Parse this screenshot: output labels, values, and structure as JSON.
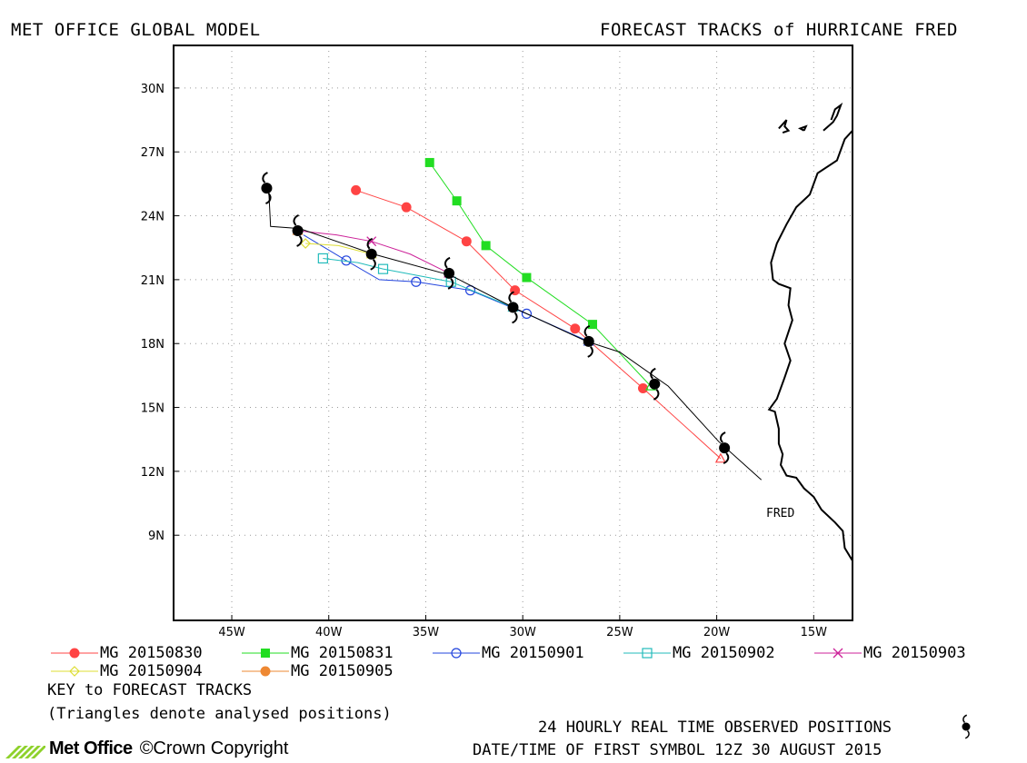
{
  "header": {
    "left_title": "MET OFFICE GLOBAL MODEL",
    "right_title": "FORECAST TRACKS of HURRICANE FRED"
  },
  "legend": {
    "entries": [
      {
        "label": "MG 20150830",
        "color": "#ff4444",
        "marker": "filled-circle"
      },
      {
        "label": "MG 20150831",
        "color": "#22dd22",
        "marker": "filled-square"
      },
      {
        "label": "MG 20150901",
        "color": "#2244dd",
        "marker": "open-circle"
      },
      {
        "label": "MG 20150902",
        "color": "#22bbbb",
        "marker": "open-square"
      },
      {
        "label": "MG 20150903",
        "color": "#cc2299",
        "marker": "cross"
      },
      {
        "label": "MG 20150904",
        "color": "#dddd33",
        "marker": "open-diamond"
      },
      {
        "label": "MG 20150905",
        "color": "#ee8833",
        "marker": "filled-circle"
      }
    ],
    "key_title": "KEY to FORECAST TRACKS",
    "key_note": "(Triangles denote analysed positions)"
  },
  "footer": {
    "observed_label": "24 HOURLY REAL TIME OBSERVED POSITIONS",
    "datetime_label": "DATE/TIME OF FIRST SYMBOL 12Z 30 AUGUST 2015",
    "logo_text": "Met Office",
    "copyright": "©Crown Copyright"
  },
  "chart_data": {
    "type": "line",
    "title": "FORECAST TRACKS of HURRICANE FRED",
    "storm_label": "FRED",
    "xlim": [
      -48,
      -13
    ],
    "ylim": [
      5,
      32
    ],
    "x_ticks": [
      {
        "value": -45,
        "label": "45W"
      },
      {
        "value": -40,
        "label": "40W"
      },
      {
        "value": -35,
        "label": "35W"
      },
      {
        "value": -30,
        "label": "30W"
      },
      {
        "value": -25,
        "label": "25W"
      },
      {
        "value": -20,
        "label": "20W"
      },
      {
        "value": -15,
        "label": "15W"
      }
    ],
    "y_ticks": [
      {
        "value": 9,
        "label": "9N"
      },
      {
        "value": 12,
        "label": "12N"
      },
      {
        "value": 15,
        "label": "15N"
      },
      {
        "value": 18,
        "label": "18N"
      },
      {
        "value": 21,
        "label": "21N"
      },
      {
        "value": 24,
        "label": "24N"
      },
      {
        "value": 27,
        "label": "27N"
      },
      {
        "value": 30,
        "label": "30N"
      }
    ],
    "grid": true,
    "observed_track": {
      "line": [
        [
          -17.7,
          11.6
        ],
        [
          -19.9,
          13.4
        ],
        [
          -22.5,
          16.0
        ],
        [
          -25.0,
          17.6
        ],
        [
          -26.7,
          18.1
        ],
        [
          -30.5,
          19.7
        ],
        [
          -33.7,
          21.2
        ],
        [
          -37.7,
          22.2
        ],
        [
          -41.5,
          23.4
        ],
        [
          -43.0,
          23.5
        ],
        [
          -43.1,
          25.3
        ]
      ],
      "symbols": [
        [
          -19.6,
          13.1
        ],
        [
          -23.2,
          16.1
        ],
        [
          -26.6,
          18.1
        ],
        [
          -30.5,
          19.7
        ],
        [
          -33.8,
          21.3
        ],
        [
          -37.8,
          22.2
        ],
        [
          -41.6,
          23.3
        ],
        [
          -43.2,
          25.3
        ]
      ]
    },
    "series": [
      {
        "name": "MG 20150830",
        "color": "#ff4444",
        "marker": "filled-circle",
        "analysed": [
          -19.8,
          12.6
        ],
        "line": [
          [
            -19.8,
            12.6
          ],
          [
            -23.8,
            15.9
          ],
          [
            -27.3,
            18.7
          ],
          [
            -30.4,
            20.5
          ],
          [
            -32.9,
            22.8
          ],
          [
            -36.0,
            24.4
          ],
          [
            -38.6,
            25.2
          ]
        ],
        "points": [
          [
            -23.8,
            15.9
          ],
          [
            -27.3,
            18.7
          ],
          [
            -30.4,
            20.5
          ],
          [
            -32.9,
            22.8
          ],
          [
            -36.0,
            24.4
          ],
          [
            -38.6,
            25.2
          ]
        ]
      },
      {
        "name": "MG 20150831",
        "color": "#22dd22",
        "marker": "filled-square",
        "analysed": [
          -23.4,
          16.0
        ],
        "line": [
          [
            -23.4,
            16.0
          ],
          [
            -26.4,
            18.9
          ],
          [
            -29.8,
            21.1
          ],
          [
            -31.9,
            22.6
          ],
          [
            -33.4,
            24.7
          ],
          [
            -34.8,
            26.5
          ]
        ],
        "points": [
          [
            -26.4,
            18.9
          ],
          [
            -29.8,
            21.1
          ],
          [
            -31.9,
            22.6
          ],
          [
            -33.4,
            24.7
          ],
          [
            -34.8,
            26.5
          ]
        ]
      },
      {
        "name": "MG 20150901",
        "color": "#2244dd",
        "marker": "open-circle",
        "analysed": [
          -26.6,
          18.1
        ],
        "line": [
          [
            -26.6,
            18.1
          ],
          [
            -29.8,
            19.4
          ],
          [
            -32.7,
            20.5
          ],
          [
            -35.5,
            20.9
          ],
          [
            -37.4,
            21.0
          ],
          [
            -39.1,
            21.9
          ],
          [
            -41.3,
            23.1
          ]
        ],
        "points": [
          [
            -29.8,
            19.4
          ],
          [
            -32.7,
            20.5
          ],
          [
            -35.5,
            20.9
          ],
          [
            -39.1,
            21.9
          ]
        ]
      },
      {
        "name": "MG 20150902",
        "color": "#22bbbb",
        "marker": "open-square",
        "analysed": [
          -30.5,
          19.7
        ],
        "line": [
          [
            -30.5,
            19.7
          ],
          [
            -33.7,
            20.9
          ],
          [
            -37.2,
            21.5
          ],
          [
            -38.5,
            21.8
          ],
          [
            -40.3,
            22.0
          ]
        ],
        "points": [
          [
            -33.7,
            20.9
          ],
          [
            -37.2,
            21.5
          ],
          [
            -40.3,
            22.0
          ]
        ]
      },
      {
        "name": "MG 20150903",
        "color": "#cc2299",
        "marker": "cross",
        "analysed": [
          -33.8,
          21.3
        ],
        "line": [
          [
            -33.8,
            21.3
          ],
          [
            -35.8,
            22.2
          ],
          [
            -37.8,
            22.8
          ],
          [
            -39.6,
            23.1
          ],
          [
            -41.6,
            23.3
          ]
        ],
        "points": [
          [
            -37.8,
            22.8
          ]
        ]
      },
      {
        "name": "MG 20150904",
        "color": "#dddd33",
        "marker": "open-diamond",
        "analysed": [
          -37.8,
          22.2
        ],
        "line": [
          [
            -37.8,
            22.2
          ],
          [
            -39.5,
            22.6
          ],
          [
            -41.2,
            22.7
          ]
        ],
        "points": [
          [
            -41.2,
            22.7
          ]
        ]
      },
      {
        "name": "MG 20150905",
        "color": "#ee8833",
        "marker": "filled-circle",
        "analysed": [
          -41.6,
          23.3
        ],
        "line": [],
        "points": []
      }
    ],
    "coastlines": [
      [
        [
          -13.0,
          28.0
        ],
        [
          -13.4,
          27.6
        ],
        [
          -13.8,
          26.6
        ],
        [
          -14.8,
          26.0
        ],
        [
          -15.2,
          25.0
        ],
        [
          -15.9,
          24.4
        ],
        [
          -16.4,
          23.6
        ],
        [
          -16.9,
          22.7
        ],
        [
          -17.2,
          21.8
        ],
        [
          -17.1,
          21.0
        ],
        [
          -16.8,
          20.8
        ],
        [
          -16.2,
          20.6
        ],
        [
          -16.3,
          19.8
        ],
        [
          -16.1,
          19.1
        ],
        [
          -16.5,
          18.0
        ],
        [
          -16.2,
          17.2
        ],
        [
          -16.5,
          16.4
        ],
        [
          -16.9,
          15.4
        ],
        [
          -17.3,
          14.9
        ],
        [
          -17.0,
          14.8
        ],
        [
          -16.8,
          14.0
        ],
        [
          -16.8,
          13.3
        ],
        [
          -16.6,
          12.8
        ],
        [
          -16.7,
          12.3
        ],
        [
          -16.4,
          11.8
        ],
        [
          -15.9,
          11.7
        ],
        [
          -15.5,
          11.2
        ],
        [
          -15.0,
          10.8
        ],
        [
          -14.6,
          10.2
        ],
        [
          -13.9,
          9.6
        ],
        [
          -13.5,
          9.2
        ],
        [
          -13.4,
          8.4
        ],
        [
          -13.0,
          7.8
        ]
      ],
      [
        [
          -16.8,
          28.1
        ],
        [
          -16.4,
          28.5
        ],
        [
          -16.5,
          28.2
        ],
        [
          -16.3,
          28.0
        ],
        [
          -16.6,
          27.9
        ]
      ],
      [
        [
          -15.5,
          28.0
        ],
        [
          -15.4,
          28.2
        ],
        [
          -15.7,
          28.1
        ],
        [
          -15.5,
          28.0
        ]
      ],
      [
        [
          -14.5,
          28.0
        ],
        [
          -14.0,
          28.4
        ],
        [
          -13.8,
          28.7
        ],
        [
          -13.6,
          29.2
        ],
        [
          -13.9,
          29.0
        ],
        [
          -14.1,
          28.5
        ]
      ]
    ]
  }
}
